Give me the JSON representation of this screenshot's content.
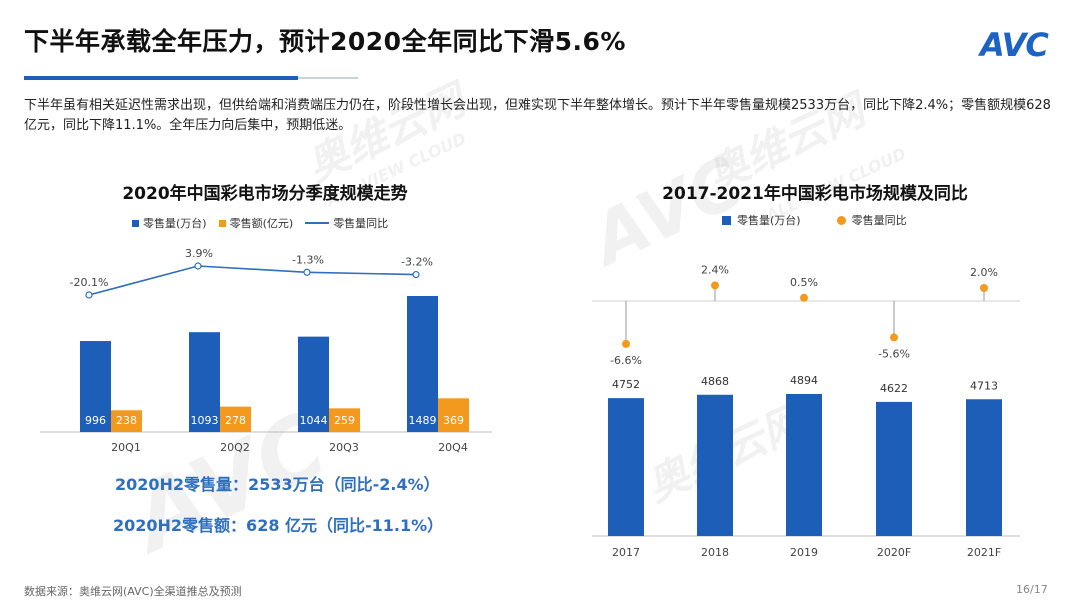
{
  "slide": {
    "title": "下半年承载全年压力，预计2020全年同比下滑5.6%",
    "logo": "AVC",
    "summary": "下半年虽有相关延迟性需求出现，但供给端和消费端压力仍在，阶段性增长会出现，但难实现下半年整体增长。预计下半年零售量规模2533万台，同比下降2.4%；零售额规模628亿元，同比下降11.1%。全年压力向后集中，预期低迷。",
    "h2_volume": "2020H2零售量：2533万台（同比-2.4%）",
    "h2_revenue": "2020H2零售额：628 亿元（同比-11.1%）",
    "source": "数据来源：奥维云网(AVC)全渠道推总及预测",
    "page": "16/17",
    "watermark_brand": "AVC",
    "watermark_cn": "奥维云网",
    "watermark_en": "ALL VIEW CLOUD"
  },
  "chart_data": [
    {
      "type": "bar",
      "title": "2020年中国彩电市场分季度规模走势",
      "categories": [
        "20Q1",
        "20Q2",
        "20Q3",
        "20Q4"
      ],
      "series": [
        {
          "name": "零售量(万台)",
          "kind": "bar",
          "color": "#1d5fb8",
          "values": [
            996,
            1093,
            1044,
            1489
          ]
        },
        {
          "name": "零售额(亿元)",
          "kind": "bar",
          "color": "#f39a1e",
          "values": [
            238,
            278,
            259,
            369
          ]
        },
        {
          "name": "零售量同比",
          "kind": "line",
          "color": "#2f6fc0",
          "values": [
            -20.1,
            3.9,
            -1.3,
            -3.2
          ],
          "labels": [
            "-20.1%",
            "3.9%",
            "-1.3%",
            "-3.2%"
          ]
        }
      ],
      "legend": "top"
    },
    {
      "type": "bar",
      "title": "2017-2021年中国彩电市场规模及同比",
      "categories": [
        "2017",
        "2018",
        "2019",
        "2020F",
        "2021F"
      ],
      "series": [
        {
          "name": "零售量(万台)",
          "kind": "bar",
          "color": "#1d5fb8",
          "values": [
            4752,
            4868,
            4894,
            4622,
            4713
          ]
        },
        {
          "name": "零售量同比",
          "kind": "dot",
          "color": "#f39a1e",
          "values": [
            -6.6,
            2.4,
            0.5,
            -5.6,
            2.0
          ],
          "labels": [
            "-6.6%",
            "2.4%",
            "0.5%",
            "-5.6%",
            "2.0%"
          ]
        }
      ],
      "legend": "top"
    }
  ]
}
